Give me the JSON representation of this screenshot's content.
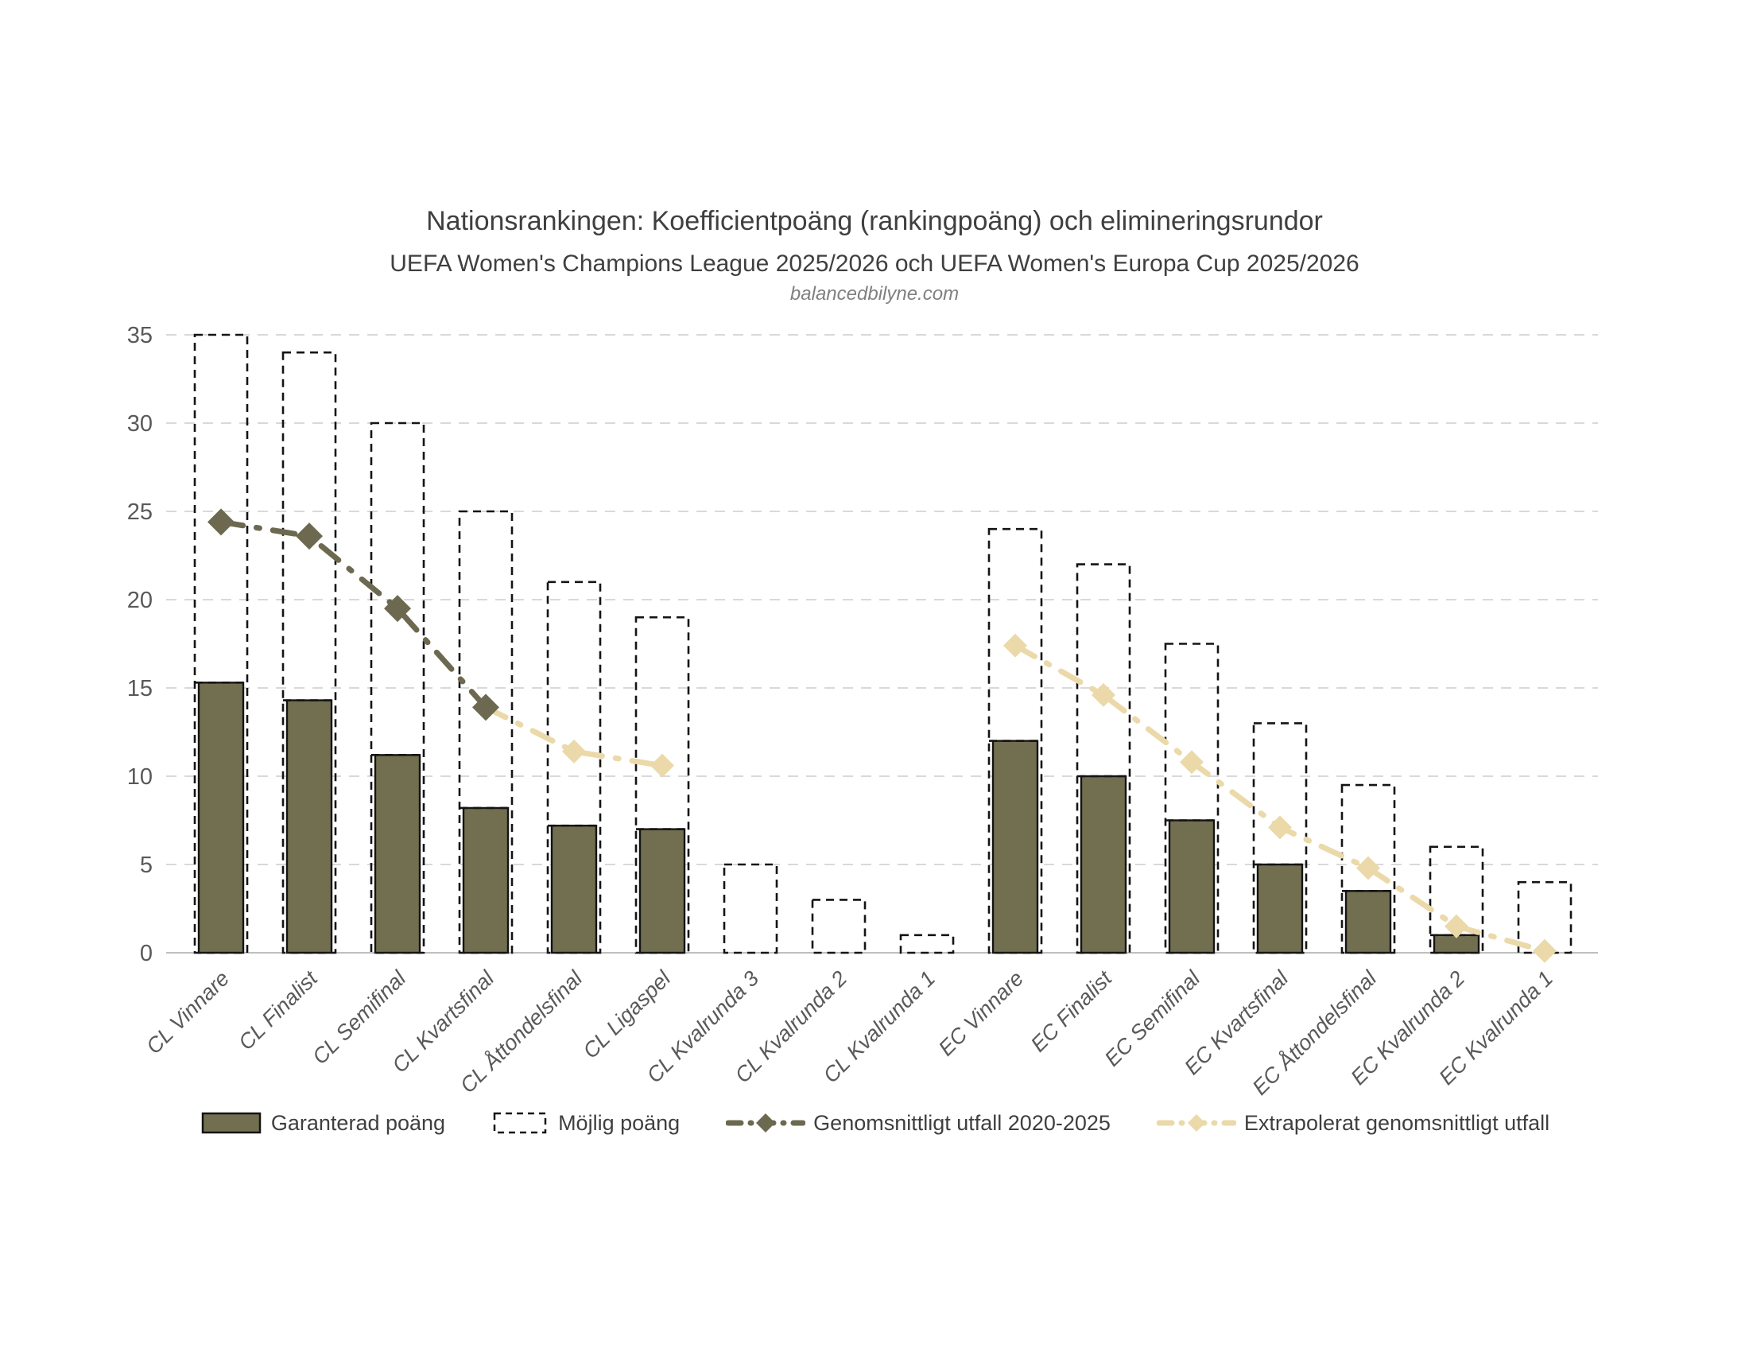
{
  "header": {
    "title": "Nationsrankingen: Koefficientpoäng (rankingpoäng) och elimineringsrundor",
    "subtitle": "UEFA Women's Champions League 2025/2026 och UEFA Women's Europa Cup 2025/2026",
    "source": "balancedbilyne.com"
  },
  "legend": {
    "items": [
      {
        "label": "Garanterad poäng",
        "type": "solid-bar"
      },
      {
        "label": "Möjlig poäng",
        "type": "dashed-bar"
      },
      {
        "label": "Genomsnittligt utfall 2020-2025",
        "type": "dark-line"
      },
      {
        "label": "Extrapolerat genomsnittligt utfall",
        "type": "tan-line"
      }
    ]
  },
  "colors": {
    "bar_fill": "#726E50",
    "bar_border": "#141414",
    "dashed_outline": "#141414",
    "dark_line": "#6D6950",
    "tan_line": "#EBD9A9",
    "gridline": "#D9D9D9",
    "axis_line": "#BFBFBF",
    "axis_text": "#595959",
    "title_text": "#3F3F3F"
  },
  "chart_data": {
    "type": "bar",
    "title": "Nationsrankingen: Koefficientpoäng (rankingpoäng) och elimineringsrundor",
    "subtitle": "UEFA Women's Champions League 2025/2026 och UEFA Women's Europa Cup 2025/2026",
    "xlabel": "",
    "ylabel": "",
    "ylim": [
      0,
      35
    ],
    "ytick_step": 5,
    "yticks": [
      0,
      5,
      10,
      15,
      20,
      25,
      30,
      35
    ],
    "grid": true,
    "legend_position": "bottom",
    "categories": [
      "CL Vinnare",
      "CL Finalist",
      "CL Semifinal",
      "CL Kvartsfinal",
      "CL Åttondelsfinal",
      "CL Ligaspel",
      "CL Kvalrunda 3",
      "CL Kvalrunda 2",
      "CL Kvalrunda 1",
      "EC Vinnare",
      "EC Finalist",
      "EC Semifinal",
      "EC Kvartsfinal",
      "EC Åttondelsfinal",
      "EC Kvalrunda 2",
      "EC Kvalrunda 1"
    ],
    "series": [
      {
        "name": "Garanterad poäng",
        "type": "bar",
        "values": [
          15.3,
          14.3,
          11.2,
          8.2,
          7.2,
          7.0,
          0,
          0,
          0,
          12.0,
          10.0,
          7.5,
          5.0,
          3.5,
          1.0,
          0
        ]
      },
      {
        "name": "Möjlig poäng",
        "type": "bar-outline",
        "values": [
          35,
          34,
          30,
          25,
          21,
          19,
          5,
          3,
          1,
          24,
          22,
          17.5,
          13,
          9.5,
          6,
          4
        ]
      },
      {
        "name": "Genomsnittligt utfall 2020-2025",
        "type": "line",
        "values": [
          24.4,
          23.6,
          19.5,
          13.9,
          null,
          null,
          null,
          null,
          null,
          null,
          null,
          null,
          null,
          null,
          null,
          null
        ]
      },
      {
        "name": "Extrapolerat genomsnittligt utfall",
        "type": "line",
        "values": [
          null,
          null,
          null,
          13.9,
          11.4,
          10.6,
          null,
          null,
          null,
          17.4,
          14.6,
          10.8,
          7.1,
          4.8,
          1.5,
          0.1
        ]
      }
    ]
  }
}
